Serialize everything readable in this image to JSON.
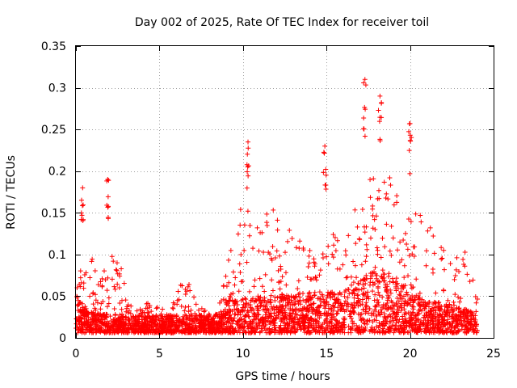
{
  "chart_data": {
    "type": "scatter",
    "title": "Day 002 of 2025, Rate Of TEC Index for receiver toil",
    "xlabel": "GPS time / hours",
    "ylabel": "ROTI / TECUs",
    "xlim": [
      0,
      25
    ],
    "ylim": [
      0,
      0.35
    ],
    "x_ticks": [
      "0",
      "5",
      "10",
      "15",
      "20",
      "25"
    ],
    "y_ticks": [
      "0",
      "0.05",
      "0.1",
      "0.15",
      "0.2",
      "0.25",
      "0.3",
      "0.35"
    ],
    "grid": true,
    "marker": "+",
    "color": "#ff0000",
    "peaks": [
      {
        "x": 0.4,
        "y": 0.18
      },
      {
        "x": 1.9,
        "y": 0.19
      },
      {
        "x": 10.3,
        "y": 0.235
      },
      {
        "x": 14.9,
        "y": 0.23
      },
      {
        "x": 17.3,
        "y": 0.31
      },
      {
        "x": 18.2,
        "y": 0.29
      },
      {
        "x": 20.0,
        "y": 0.257
      }
    ],
    "envelope": [
      {
        "x": 0.0,
        "y": 0.06
      },
      {
        "x": 0.5,
        "y": 0.1
      },
      {
        "x": 1.0,
        "y": 0.1
      },
      {
        "x": 1.5,
        "y": 0.06
      },
      {
        "x": 2.0,
        "y": 0.1
      },
      {
        "x": 2.5,
        "y": 0.1
      },
      {
        "x": 3.0,
        "y": 0.05
      },
      {
        "x": 3.5,
        "y": 0.025
      },
      {
        "x": 4.5,
        "y": 0.04
      },
      {
        "x": 5.5,
        "y": 0.025
      },
      {
        "x": 6.5,
        "y": 0.07
      },
      {
        "x": 7.5,
        "y": 0.03
      },
      {
        "x": 8.5,
        "y": 0.03
      },
      {
        "x": 9.2,
        "y": 0.1
      },
      {
        "x": 10.0,
        "y": 0.16
      },
      {
        "x": 11.0,
        "y": 0.14
      },
      {
        "x": 12.0,
        "y": 0.15
      },
      {
        "x": 13.0,
        "y": 0.12
      },
      {
        "x": 14.0,
        "y": 0.1
      },
      {
        "x": 15.0,
        "y": 0.15
      },
      {
        "x": 16.0,
        "y": 0.1
      },
      {
        "x": 16.8,
        "y": 0.16
      },
      {
        "x": 17.5,
        "y": 0.19
      },
      {
        "x": 18.5,
        "y": 0.2
      },
      {
        "x": 19.5,
        "y": 0.17
      },
      {
        "x": 20.5,
        "y": 0.15
      },
      {
        "x": 21.5,
        "y": 0.12
      },
      {
        "x": 22.5,
        "y": 0.08
      },
      {
        "x": 23.3,
        "y": 0.11
      },
      {
        "x": 24.0,
        "y": 0.06
      }
    ],
    "baseline": [
      {
        "x": 0.0,
        "y": 0.035
      },
      {
        "x": 0.8,
        "y": 0.02
      },
      {
        "x": 3.0,
        "y": 0.015
      },
      {
        "x": 8.8,
        "y": 0.018
      },
      {
        "x": 9.0,
        "y": 0.03
      },
      {
        "x": 12.0,
        "y": 0.035
      },
      {
        "x": 16.0,
        "y": 0.04
      },
      {
        "x": 18.0,
        "y": 0.06
      },
      {
        "x": 21.0,
        "y": 0.03
      },
      {
        "x": 24.0,
        "y": 0.02
      }
    ]
  }
}
